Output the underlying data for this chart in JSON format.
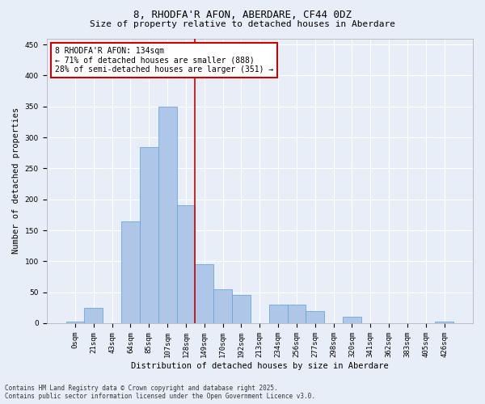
{
  "title": "8, RHODFA'R AFON, ABERDARE, CF44 0DZ",
  "subtitle": "Size of property relative to detached houses in Aberdare",
  "xlabel": "Distribution of detached houses by size in Aberdare",
  "ylabel": "Number of detached properties",
  "categories": [
    "0sqm",
    "21sqm",
    "43sqm",
    "64sqm",
    "85sqm",
    "107sqm",
    "128sqm",
    "149sqm",
    "170sqm",
    "192sqm",
    "213sqm",
    "234sqm",
    "256sqm",
    "277sqm",
    "298sqm",
    "320sqm",
    "341sqm",
    "362sqm",
    "383sqm",
    "405sqm",
    "426sqm"
  ],
  "values": [
    2,
    25,
    0,
    165,
    285,
    350,
    190,
    95,
    55,
    45,
    0,
    30,
    30,
    20,
    0,
    10,
    0,
    0,
    0,
    0,
    2
  ],
  "bar_color": "#aec6e8",
  "bar_edgecolor": "#5a9fd4",
  "vline_x": 6.5,
  "vline_color": "#cc0000",
  "annotation_text": "8 RHODFA'R AFON: 134sqm\n← 71% of detached houses are smaller (888)\n28% of semi-detached houses are larger (351) →",
  "annotation_box_color": "#ffffff",
  "annotation_box_edgecolor": "#cc0000",
  "ylim": [
    0,
    460
  ],
  "yticks": [
    0,
    50,
    100,
    150,
    200,
    250,
    300,
    350,
    400,
    450
  ],
  "footer": "Contains HM Land Registry data © Crown copyright and database right 2025.\nContains public sector information licensed under the Open Government Licence v3.0.",
  "background_color": "#e8eef8",
  "plot_background": "#e8eef8",
  "title_fontsize": 9,
  "subtitle_fontsize": 8,
  "ylabel_fontsize": 7.5,
  "xlabel_fontsize": 7.5,
  "tick_fontsize": 6.5,
  "annot_fontsize": 7,
  "footer_fontsize": 5.5
}
